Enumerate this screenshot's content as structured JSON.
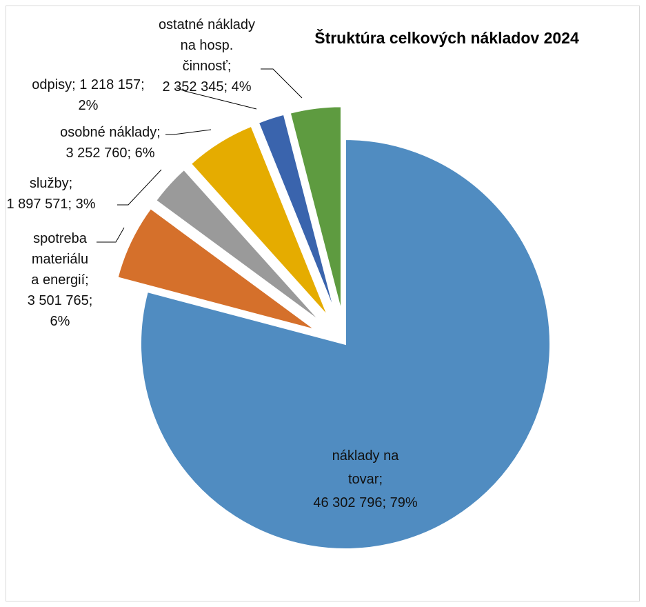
{
  "chart_data": {
    "type": "pie",
    "title": "Štruktúra celkových nákladov 2024",
    "exploded": true,
    "slices": [
      {
        "name": "náklady na tovar",
        "value": 46302796,
        "percent": "79%",
        "color": "#508cc1",
        "label_lines": [
          "náklady na",
          "tovar;",
          "46 302 796; 79%"
        ]
      },
      {
        "name": "spotreba materiálu a energií",
        "value": 3501765,
        "percent": "6%",
        "color": "#d5702b",
        "label_lines": [
          "spotreba",
          "materiálu",
          "a energií;",
          "3 501 765;",
          "6%"
        ]
      },
      {
        "name": "služby",
        "value": 1897571,
        "percent": "3%",
        "color": "#9a9a9a",
        "label_lines": [
          "služby;",
          "1 897 571; 3%"
        ]
      },
      {
        "name": "osobné náklady",
        "value": 3252760,
        "percent": "6%",
        "color": "#e5ac00",
        "label_lines": [
          "osobné náklady;",
          "3 252 760; 6%"
        ]
      },
      {
        "name": "odpisy",
        "value": 1218157,
        "percent": "2%",
        "color": "#3a64ad",
        "label_lines": [
          "odpisy; 1 218 157;",
          "2%"
        ]
      },
      {
        "name": "ostatné náklady na hosp. činnosť",
        "value": 2352345,
        "percent": "4%",
        "color": "#5e9b40",
        "label_lines": [
          "ostatné náklady",
          "na hosp.",
          "činnosť;",
          "2 352 345; 4%"
        ]
      }
    ]
  }
}
